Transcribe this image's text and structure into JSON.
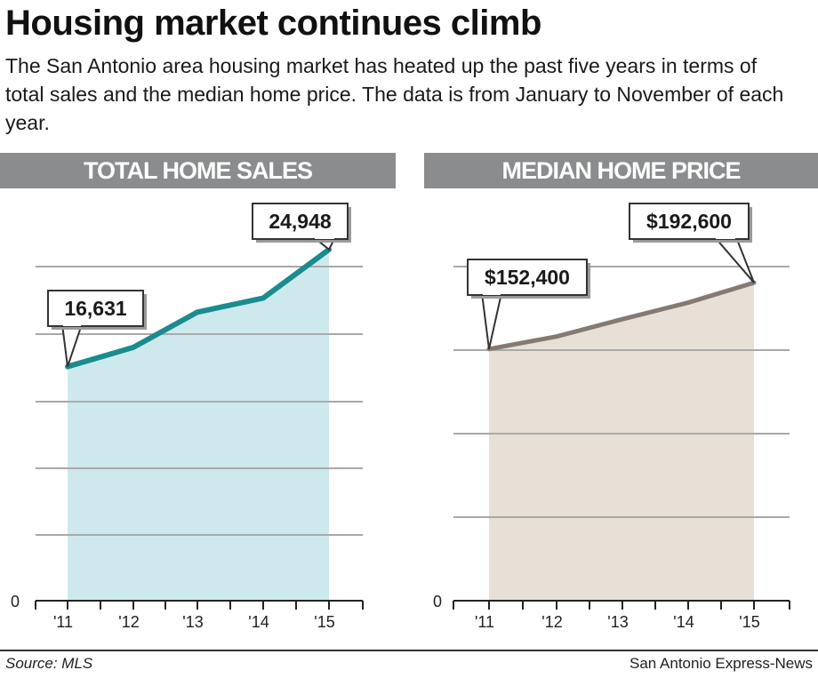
{
  "headline": "Housing market continues climb",
  "intro": "The San Antonio area housing market has heated up the past five years in terms of total sales and the median home price. The data is from January to November of each year.",
  "source": "Source: MLS",
  "credit": "San Antonio Express-News",
  "colors": {
    "header_bar": "#8a8c8e",
    "sales_line": "#1a8c8e",
    "sales_fill": "#cde9ee",
    "price_line": "#857a73",
    "price_fill": "#e6e0d6",
    "grid": "#a9a9a9"
  },
  "chart_data": [
    {
      "type": "area",
      "title": "TOTAL HOME SALES",
      "x": [
        "'11",
        "'12",
        "'13",
        "'14",
        "'15"
      ],
      "values": [
        16631,
        18000,
        20500,
        21500,
        24948
      ],
      "ylim": [
        0,
        25000
      ],
      "zero_label": "0",
      "callouts": [
        {
          "index": 0,
          "label": "16,631"
        },
        {
          "index": 4,
          "label": "24,948"
        }
      ],
      "grid": true
    },
    {
      "type": "area",
      "title": "MEDIAN HOME PRICE",
      "x": [
        "'11",
        "'12",
        "'13",
        "'14",
        "'15"
      ],
      "values": [
        152400,
        160000,
        170500,
        180500,
        192600
      ],
      "ylim": [
        0,
        240000
      ],
      "zero_label": "0",
      "callouts": [
        {
          "index": 0,
          "label": "$152,400"
        },
        {
          "index": 4,
          "label": "$192,600"
        }
      ],
      "grid": true
    }
  ]
}
